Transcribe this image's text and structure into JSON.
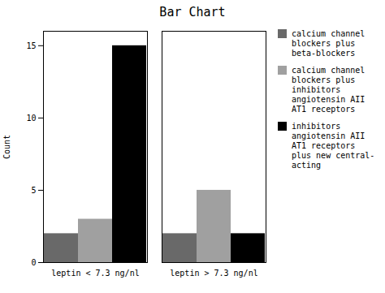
{
  "chart_data": {
    "type": "bar",
    "title": "Bar Chart",
    "ylabel": "Count",
    "categories": [
      "leptin < 7.3 ng/nl",
      "leptin > 7.3 ng/nl"
    ],
    "series": [
      {
        "name": "calcium channel\nblockers plus\nbeta-blockers",
        "color": "#696969",
        "values": [
          2,
          2
        ]
      },
      {
        "name": "calcium channel\nblockers plus\ninhibitors\nangiotensin AII\nAT1 receptors",
        "color": "#a0a0a0",
        "values": [
          3,
          5
        ]
      },
      {
        "name": "inhibitors\nangiotensin AII\nAT1 receptors\nplus new central-\nacting",
        "color": "#000000",
        "values": [
          15,
          2
        ]
      }
    ],
    "ylim": [
      0,
      16
    ],
    "yticks": [
      0,
      5,
      10,
      15
    ],
    "grid": false,
    "legend": "right"
  }
}
